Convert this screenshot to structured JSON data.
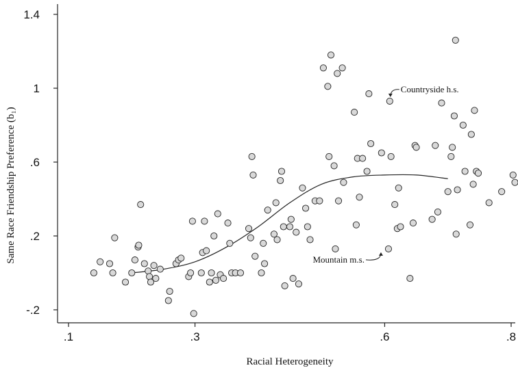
{
  "chart_data": {
    "type": "scatter",
    "xlabel": "Racial Heterogeneity",
    "ylabel": "Same Race Friendship Preference (b₁)",
    "xlim": [
      0.1,
      0.8
    ],
    "ylim": [
      -0.2,
      1.4
    ],
    "x_ticks": [
      {
        "value": 0.1,
        "label": ".1"
      },
      {
        "value": 0.3,
        "label": ".3"
      },
      {
        "value": 0.6,
        "label": ".6"
      },
      {
        "value": 0.8,
        "label": ".8"
      }
    ],
    "y_ticks": [
      {
        "value": -0.2,
        "label": "-.2"
      },
      {
        "value": 0.2,
        "label": ".2"
      },
      {
        "value": 0.6,
        "label": ".6"
      },
      {
        "value": 1.0,
        "label": "1"
      },
      {
        "value": 1.4,
        "label": "1.4"
      }
    ],
    "points": [
      [
        0.14,
        0.0
      ],
      [
        0.15,
        0.06
      ],
      [
        0.165,
        0.05
      ],
      [
        0.17,
        0.0
      ],
      [
        0.173,
        0.19
      ],
      [
        0.19,
        -0.05
      ],
      [
        0.2,
        0.0
      ],
      [
        0.205,
        0.07
      ],
      [
        0.21,
        0.14
      ],
      [
        0.211,
        0.15
      ],
      [
        0.214,
        0.37
      ],
      [
        0.22,
        0.05
      ],
      [
        0.226,
        0.01
      ],
      [
        0.228,
        -0.02
      ],
      [
        0.23,
        -0.05
      ],
      [
        0.235,
        0.04
      ],
      [
        0.238,
        -0.03
      ],
      [
        0.245,
        0.02
      ],
      [
        0.258,
        -0.15
      ],
      [
        0.26,
        -0.1
      ],
      [
        0.27,
        0.05
      ],
      [
        0.274,
        0.07
      ],
      [
        0.278,
        0.08
      ],
      [
        0.29,
        -0.02
      ],
      [
        0.293,
        0.0
      ],
      [
        0.296,
        0.28
      ],
      [
        0.298,
        -0.22
      ],
      [
        0.31,
        0.0
      ],
      [
        0.312,
        0.11
      ],
      [
        0.315,
        0.28
      ],
      [
        0.318,
        0.12
      ],
      [
        0.323,
        -0.05
      ],
      [
        0.326,
        0.0
      ],
      [
        0.33,
        0.2
      ],
      [
        0.333,
        -0.04
      ],
      [
        0.336,
        0.32
      ],
      [
        0.34,
        -0.01
      ],
      [
        0.345,
        -0.03
      ],
      [
        0.352,
        0.27
      ],
      [
        0.355,
        0.16
      ],
      [
        0.358,
        0.0
      ],
      [
        0.364,
        0.0
      ],
      [
        0.372,
        0.0
      ],
      [
        0.385,
        0.24
      ],
      [
        0.388,
        0.19
      ],
      [
        0.39,
        0.63
      ],
      [
        0.392,
        0.53
      ],
      [
        0.395,
        0.09
      ],
      [
        0.405,
        0.0
      ],
      [
        0.408,
        0.16
      ],
      [
        0.41,
        0.05
      ],
      [
        0.415,
        0.34
      ],
      [
        0.425,
        0.21
      ],
      [
        0.428,
        0.38
      ],
      [
        0.43,
        0.18
      ],
      [
        0.435,
        0.5
      ],
      [
        0.437,
        0.55
      ],
      [
        0.44,
        0.25
      ],
      [
        0.442,
        -0.07
      ],
      [
        0.45,
        0.25
      ],
      [
        0.452,
        0.29
      ],
      [
        0.455,
        -0.03
      ],
      [
        0.46,
        0.22
      ],
      [
        0.464,
        -0.06
      ],
      [
        0.47,
        0.46
      ],
      [
        0.475,
        0.35
      ],
      [
        0.478,
        0.25
      ],
      [
        0.482,
        0.18
      ],
      [
        0.49,
        0.39
      ],
      [
        0.497,
        0.39
      ],
      [
        0.503,
        1.11
      ],
      [
        0.51,
        1.01
      ],
      [
        0.512,
        0.63
      ],
      [
        0.515,
        1.18
      ],
      [
        0.52,
        0.58
      ],
      [
        0.522,
        0.13
      ],
      [
        0.525,
        1.08
      ],
      [
        0.527,
        0.39
      ],
      [
        0.533,
        1.11
      ],
      [
        0.535,
        0.49
      ],
      [
        0.552,
        0.87
      ],
      [
        0.555,
        0.26
      ],
      [
        0.557,
        0.62
      ],
      [
        0.56,
        0.41
      ],
      [
        0.565,
        0.62
      ],
      [
        0.572,
        0.55
      ],
      [
        0.575,
        0.97
      ],
      [
        0.578,
        0.7
      ],
      [
        0.595,
        0.65
      ],
      [
        0.606,
        0.13
      ],
      [
        0.608,
        0.93
      ],
      [
        0.61,
        0.63
      ],
      [
        0.616,
        0.37
      ],
      [
        0.62,
        0.24
      ],
      [
        0.622,
        0.46
      ],
      [
        0.625,
        0.25
      ],
      [
        0.64,
        -0.03
      ],
      [
        0.645,
        0.27
      ],
      [
        0.648,
        0.69
      ],
      [
        0.65,
        0.68
      ],
      [
        0.675,
        0.29
      ],
      [
        0.68,
        0.69
      ],
      [
        0.684,
        0.33
      ],
      [
        0.69,
        0.92
      ],
      [
        0.7,
        0.44
      ],
      [
        0.705,
        0.63
      ],
      [
        0.707,
        0.68
      ],
      [
        0.71,
        0.85
      ],
      [
        0.712,
        1.26
      ],
      [
        0.713,
        0.21
      ],
      [
        0.715,
        0.45
      ],
      [
        0.724,
        0.8
      ],
      [
        0.727,
        0.55
      ],
      [
        0.735,
        0.26
      ],
      [
        0.737,
        0.75
      ],
      [
        0.74,
        0.48
      ],
      [
        0.742,
        0.88
      ],
      [
        0.745,
        0.55
      ],
      [
        0.748,
        0.54
      ],
      [
        0.765,
        0.38
      ],
      [
        0.785,
        0.44
      ],
      [
        0.803,
        0.53
      ],
      [
        0.806,
        0.49
      ]
    ],
    "fit_line": [
      [
        0.2,
        0.0
      ],
      [
        0.25,
        0.02
      ],
      [
        0.3,
        0.06
      ],
      [
        0.35,
        0.14
      ],
      [
        0.4,
        0.25
      ],
      [
        0.45,
        0.38
      ],
      [
        0.5,
        0.48
      ],
      [
        0.55,
        0.52
      ],
      [
        0.6,
        0.53
      ],
      [
        0.65,
        0.53
      ],
      [
        0.7,
        0.51
      ]
    ],
    "annotations": [
      {
        "text": "Countryside h.s.",
        "point": [
          0.608,
          0.93
        ]
      },
      {
        "text": "Mountain m.s.",
        "point": [
          0.606,
          0.13
        ]
      }
    ]
  }
}
